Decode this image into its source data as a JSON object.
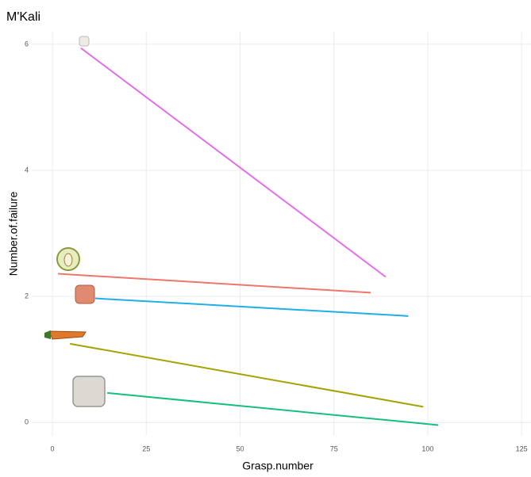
{
  "chart_data": {
    "type": "line",
    "title": "M'Kali",
    "x_label": "Grasp.number",
    "y_label": "Number.of.failure",
    "series": [
      {
        "color": "#e26ee8",
        "x": [
          7.6,
          88.8
        ],
        "values": [
          5.94,
          2.31
        ]
      },
      {
        "color": "#f0756b",
        "x": [
          1.5,
          84.8
        ],
        "values": [
          2.36,
          2.06
        ]
      },
      {
        "color": "#1eaee8",
        "x": [
          11.4,
          94.8
        ],
        "values": [
          1.97,
          1.69
        ]
      },
      {
        "color": "#a3a300",
        "x": [
          4.7,
          98.8
        ],
        "values": [
          1.25,
          0.25
        ]
      },
      {
        "color": "#16c07a",
        "x": [
          14.6,
          102.8
        ],
        "values": [
          0.47,
          -0.04
        ]
      }
    ],
    "xlim": [
      -5.5,
      127.5
    ],
    "ylim": [
      -0.21,
      6.2
    ],
    "xticks": [
      0,
      25,
      50,
      75,
      100,
      125
    ],
    "yticks": [
      0,
      2,
      4,
      6
    ],
    "grid": true
  }
}
